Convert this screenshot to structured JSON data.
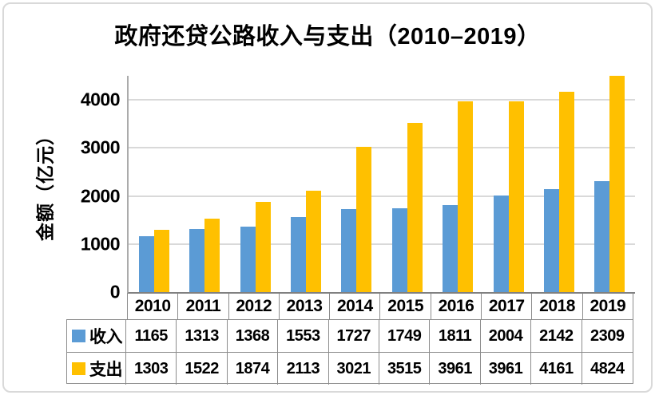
{
  "chart_data": {
    "type": "bar",
    "title": "政府还贷公路收入与支出（2010–2019）",
    "ylabel": "金额（亿元）",
    "categories": [
      "2010",
      "2011",
      "2012",
      "2013",
      "2014",
      "2015",
      "2016",
      "2017",
      "2018",
      "2019"
    ],
    "series": [
      {
        "name": "收入",
        "color": "#5B9BD5",
        "values": [
          1165,
          1313,
          1368,
          1553,
          1727,
          1749,
          1811,
          2004,
          2142,
          2309
        ]
      },
      {
        "name": "支出",
        "color": "#FFC000",
        "values": [
          1303,
          1522,
          1874,
          2113,
          3021,
          3515,
          3961,
          3961,
          4161,
          4824
        ]
      }
    ],
    "ylim": [
      0,
      4500
    ],
    "yticks": [
      0,
      1000,
      2000,
      3000,
      4000
    ],
    "grid": "horizontal",
    "legend_position": "data-table-left",
    "clipped_note": ""
  },
  "colors": {
    "income": "#5B9BD5",
    "expenditure": "#FFC000",
    "gridline": "#D9D9D9",
    "axis_x": "#808080",
    "axis_y": "#ABABAB",
    "table_border": "#8C8C8C",
    "frame_border": "#D9D9D9",
    "text": "#000000"
  }
}
